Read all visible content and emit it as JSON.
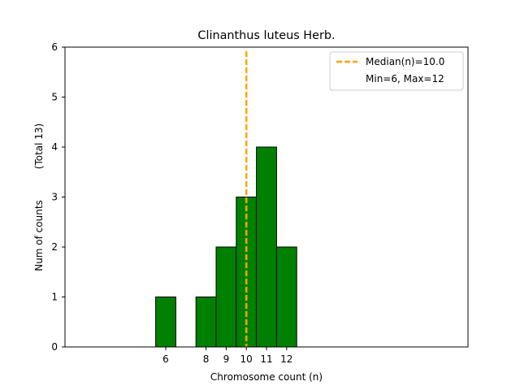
{
  "chart_data": {
    "type": "bar",
    "title": "Clinanthus luteus Herb.",
    "xlabel": "Chromosome count (n)",
    "ylabel": "Num of counts",
    "ylabel_total": "(Total 13)",
    "xlim": [
      1,
      21
    ],
    "ylim": [
      0,
      6
    ],
    "bar_width": 1,
    "x_ticks": [
      6,
      8,
      9,
      10,
      11,
      12
    ],
    "y_ticks": [
      0,
      1,
      2,
      3,
      4,
      5,
      6
    ],
    "bars": [
      {
        "x": 6,
        "count": 1
      },
      {
        "x": 8,
        "count": 1
      },
      {
        "x": 9,
        "count": 2
      },
      {
        "x": 10,
        "count": 3
      },
      {
        "x": 11,
        "count": 4
      },
      {
        "x": 12,
        "count": 2
      }
    ],
    "median": 10.0,
    "legend": {
      "position": "top-right",
      "median_label": "Median(n)=10.0",
      "range_label": "Min=6, Max=12"
    },
    "colors": {
      "bar_fill": "#008000",
      "bar_edge": "#000000",
      "median_line": "#FFA500"
    },
    "grid": false
  }
}
